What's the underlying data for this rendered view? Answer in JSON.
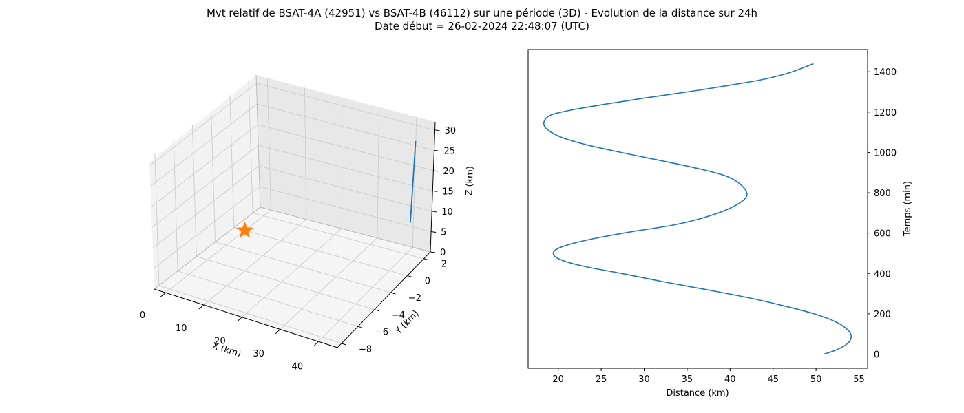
{
  "chart_data": [
    {
      "type": "line3d",
      "title": "Mvt relatif de BSAT-4A (42951) vs BSAT-4B (46112) sur une période (3D) - Evolution de la distance sur 24h",
      "subtitle": "Date début = 26-02-2024 22:48:07 (UTC)",
      "xlabel": "X (km)",
      "ylabel": "Y (km)",
      "zlabel": "Z (km)",
      "xlim": [
        -3,
        45
      ],
      "ylim": [
        -8.5,
        2.8
      ],
      "zlim": [
        0,
        32
      ],
      "xticks": [
        "0",
        "10",
        "20",
        "30",
        "40"
      ],
      "yticks": [
        "−8",
        "−6",
        "−4",
        "−2",
        "0",
        "2"
      ],
      "zticks": [
        "0",
        "5",
        "10",
        "15",
        "20",
        "25",
        "30"
      ],
      "grid": true,
      "series": [
        {
          "color": "#1f77b4",
          "points": [
            [
              44.0,
              0.6,
              11.5
            ],
            [
              44.0,
              0.9,
              31.0
            ]
          ]
        }
      ],
      "markers": [
        {
          "shape": "star",
          "color": "#ff7f0e",
          "point": [
            0,
            0,
            0
          ]
        }
      ]
    },
    {
      "type": "line",
      "xlabel": "Distance (km)",
      "ylabel": "Temps (min)",
      "xlim": [
        16.5,
        56
      ],
      "ylim": [
        -70,
        1510
      ],
      "xticks": [
        "20",
        "25",
        "30",
        "35",
        "40",
        "45",
        "50",
        "55"
      ],
      "yticks": [
        "0",
        "200",
        "400",
        "600",
        "800",
        "1000",
        "1200",
        "1400"
      ],
      "yaxis_position": "right",
      "grid": false,
      "series": [
        {
          "color": "#1f77b4",
          "x": [
            50.9,
            52.3,
            53.6,
            54.1,
            53.7,
            52.3,
            49.8,
            46.2,
            42.1,
            37.2,
            32.1,
            27.4,
            23.6,
            20.8,
            19.5,
            19.8,
            21.8,
            25.0,
            29.0,
            33.4,
            37.2,
            40.3,
            41.9,
            41.5,
            39.7,
            36.3,
            31.9,
            27.3,
            23.1,
            20.1,
            18.4,
            18.9,
            21.5,
            25.6,
            30.1,
            35.0,
            39.5,
            43.6,
            46.9,
            49.7
          ],
          "y": [
            0,
            20,
            50,
            85,
            120,
            160,
            200,
            240,
            280,
            320,
            360,
            400,
            430,
            460,
            490,
            520,
            550,
            580,
            610,
            640,
            680,
            730,
            780,
            830,
            880,
            920,
            960,
            1000,
            1040,
            1080,
            1130,
            1180,
            1210,
            1240,
            1270,
            1300,
            1330,
            1360,
            1395,
            1440
          ]
        }
      ]
    }
  ]
}
